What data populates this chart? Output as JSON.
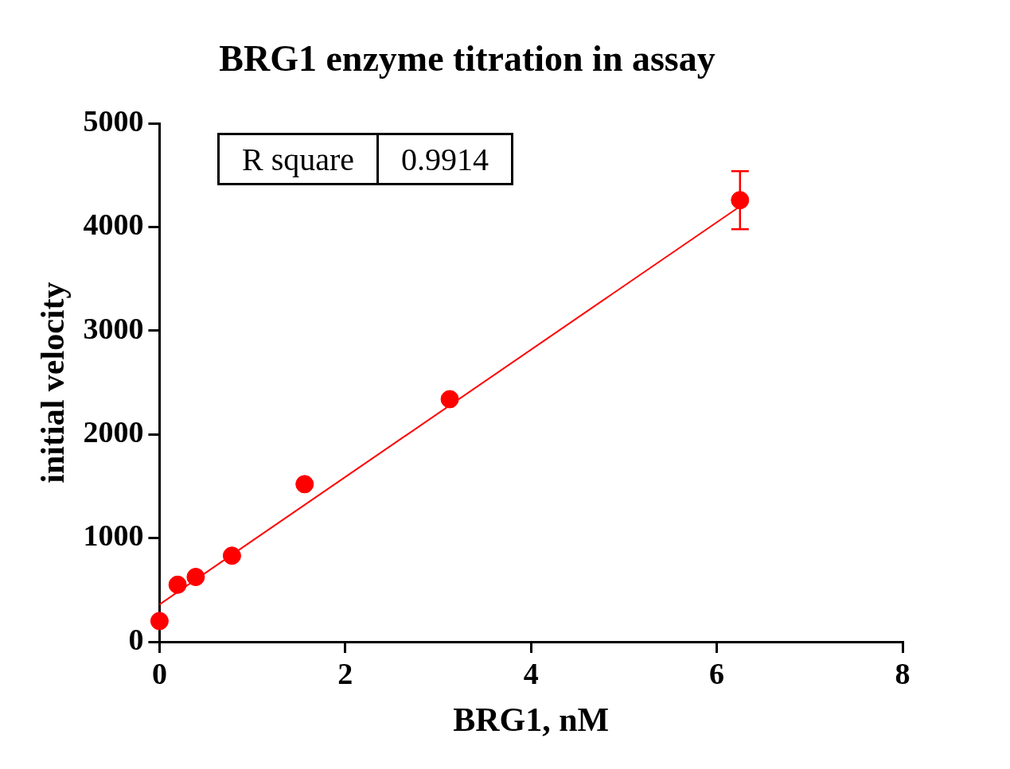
{
  "chart_data": {
    "type": "scatter",
    "title": "BRG1 enzyme titration in assay",
    "xlabel": "BRG1, nM",
    "ylabel": "initial velocity",
    "xlim": [
      0,
      8
    ],
    "xticks": [
      0,
      2,
      4,
      6,
      8
    ],
    "ylim": [
      0,
      5000
    ],
    "yticks": [
      0,
      1000,
      2000,
      3000,
      4000,
      5000
    ],
    "grid": false,
    "legend": false,
    "marker": "circle",
    "annotations": [
      "R square",
      "0.9914"
    ],
    "series": [
      {
        "type": "scatter",
        "color": "#ff0000",
        "x": [
          0,
          0.195,
          0.39,
          0.78,
          1.5625,
          3.125,
          6.25
        ],
        "values": [
          200,
          550,
          625,
          830,
          1520,
          2340,
          4260
        ],
        "errors": [
          null,
          null,
          null,
          null,
          null,
          null,
          [
            3980,
            4540
          ]
        ]
      },
      {
        "type": "line",
        "color": "#ff0000",
        "x": [
          0,
          6.25
        ],
        "values": [
          360,
          4200
        ],
        "marker": "none"
      }
    ]
  }
}
